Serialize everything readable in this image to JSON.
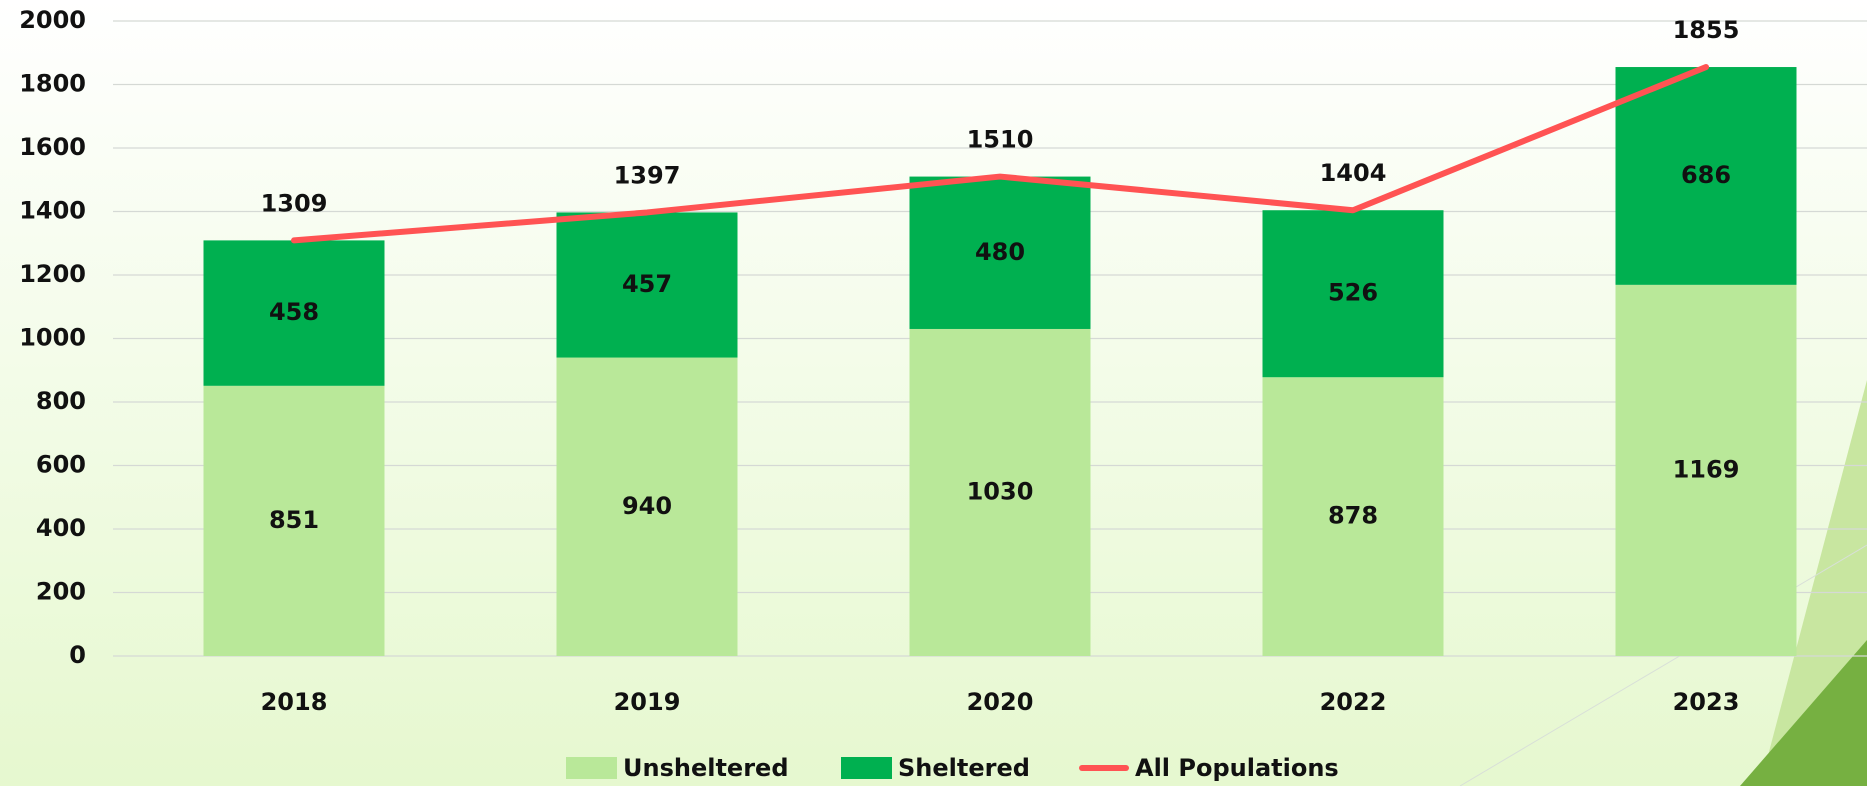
{
  "chart_data": {
    "type": "bar",
    "stacked": true,
    "categories": [
      "2018",
      "2019",
      "2020",
      "2022",
      "2023"
    ],
    "series": [
      {
        "name": "Unsheltered",
        "color": "#b9e899",
        "values": [
          851,
          940,
          1030,
          878,
          1169
        ]
      },
      {
        "name": "Sheltered",
        "color": "#00b050",
        "values": [
          458,
          457,
          480,
          526,
          686
        ]
      },
      {
        "name": "All Populations",
        "type": "line",
        "color": "#ff5353",
        "values": [
          1309,
          1397,
          1510,
          1404,
          1855
        ]
      }
    ],
    "ylim": [
      0,
      2000
    ],
    "yticks": [
      0,
      200,
      400,
      600,
      800,
      1000,
      1200,
      1400,
      1600,
      1800,
      2000
    ],
    "grid": true,
    "legend": "bottom"
  }
}
